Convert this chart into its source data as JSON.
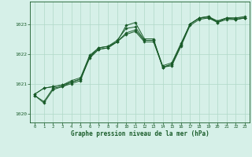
{
  "title": "Graphe pression niveau de la mer (hPa)",
  "bg_color": "#d6f0e8",
  "grid_color": "#b0d8c8",
  "line_color": "#1a5c2a",
  "xlim": [
    -0.5,
    23.5
  ],
  "ylim": [
    1019.7,
    1023.75
  ],
  "yticks": [
    1020,
    1021,
    1022,
    1023
  ],
  "xticks": [
    0,
    1,
    2,
    3,
    4,
    5,
    6,
    7,
    8,
    9,
    10,
    11,
    12,
    13,
    14,
    15,
    16,
    17,
    18,
    19,
    20,
    21,
    22,
    23
  ],
  "series": [
    [
      1020.6,
      1020.35,
      1020.8,
      1020.9,
      1021.05,
      1021.15,
      1021.9,
      1022.2,
      1022.25,
      1022.4,
      1022.95,
      1023.05,
      1022.5,
      1022.5,
      1021.55,
      1021.65,
      1022.3,
      1023.0,
      1023.2,
      1023.2,
      1023.1,
      1023.2,
      1023.2,
      1023.2
    ],
    [
      1020.65,
      1020.85,
      1020.9,
      1020.95,
      1021.1,
      1021.2,
      1021.95,
      1022.2,
      1022.25,
      1022.45,
      1022.85,
      1022.9,
      1022.45,
      1022.45,
      1021.6,
      1021.7,
      1022.35,
      1023.0,
      1023.2,
      1023.25,
      1023.1,
      1023.2,
      1023.2,
      1023.25
    ],
    [
      1020.65,
      1020.85,
      1020.9,
      1020.95,
      1021.05,
      1021.15,
      1021.85,
      1022.15,
      1022.2,
      1022.4,
      1022.7,
      1022.8,
      1022.45,
      1022.45,
      1021.55,
      1021.65,
      1022.3,
      1023.0,
      1023.2,
      1023.25,
      1023.05,
      1023.2,
      1023.15,
      1023.2
    ],
    [
      1020.6,
      1020.4,
      1020.85,
      1020.9,
      1021.0,
      1021.1,
      1021.9,
      1022.15,
      1022.2,
      1022.4,
      1022.65,
      1022.75,
      1022.4,
      1022.4,
      1021.55,
      1021.6,
      1022.25,
      1022.95,
      1023.15,
      1023.2,
      1023.05,
      1023.15,
      1023.15,
      1023.2
    ]
  ]
}
